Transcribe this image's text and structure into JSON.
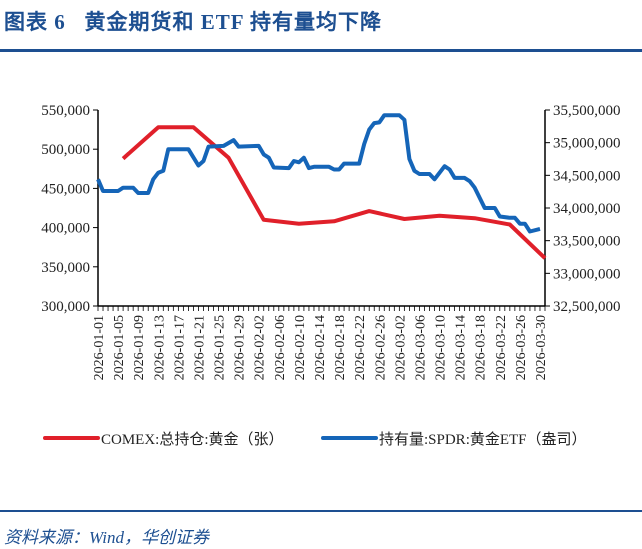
{
  "title": "图表 6   黄金期货和 ETF 持有量均下降",
  "source": "资料来源：Wind，华创证券",
  "chart_data": {
    "type": "line",
    "title": "",
    "xlabel": "",
    "x_range": [
      "2026-01-01",
      "2026-03-31"
    ],
    "x_tick_labels": [
      "2026-01-01",
      "2026-01-05",
      "2026-01-09",
      "2026-01-13",
      "2026-01-17",
      "2026-01-21",
      "2026-01-25",
      "2026-01-29",
      "2026-02-02",
      "2026-02-06",
      "2026-02-10",
      "2026-02-14",
      "2026-02-18",
      "2026-02-22",
      "2026-02-26",
      "2026-03-02",
      "2026-03-06",
      "2026-03-10",
      "2026-03-14",
      "2026-03-18",
      "2026-03-22",
      "2026-03-26",
      "2026-03-30"
    ],
    "y_left": {
      "range": [
        300000,
        550000
      ],
      "ticks": [
        "300,000",
        "350,000",
        "400,000",
        "450,000",
        "500,000",
        "550,000"
      ]
    },
    "y_right": {
      "range": [
        32500000,
        35500000
      ],
      "ticks": [
        "32,500,000",
        "33,000,000",
        "33,500,000",
        "34,000,000",
        "34,500,000",
        "35,000,000",
        "35,500,000"
      ]
    },
    "grid": false,
    "legend_position": "bottom",
    "series": [
      {
        "name": "COMEX:总持仓:黄金（张）",
        "axis": "left",
        "color": "#e0202a",
        "points": [
          [
            "2026-01-06",
            488000
          ],
          [
            "2026-01-13",
            528000
          ],
          [
            "2026-01-20",
            528000
          ],
          [
            "2026-01-27",
            489000
          ],
          [
            "2026-02-03",
            410000
          ],
          [
            "2026-02-10",
            405000
          ],
          [
            "2026-02-17",
            408000
          ],
          [
            "2026-02-24",
            421000
          ],
          [
            "2026-03-03",
            411000
          ],
          [
            "2026-03-10",
            415000
          ],
          [
            "2026-03-17",
            412000
          ],
          [
            "2026-03-24",
            404000
          ],
          [
            "2026-03-31",
            361000
          ]
        ]
      },
      {
        "name": "持有量:SPDR:黄金ETF（盎司）",
        "axis": "right",
        "color": "#1565b8",
        "points": [
          [
            "2026-01-01",
            34440000
          ],
          [
            "2026-01-02",
            34260000
          ],
          [
            "2026-01-05",
            34260000
          ],
          [
            "2026-01-06",
            34310000
          ],
          [
            "2026-01-08",
            34310000
          ],
          [
            "2026-01-09",
            34230000
          ],
          [
            "2026-01-11",
            34230000
          ],
          [
            "2026-01-12",
            34440000
          ],
          [
            "2026-01-13",
            34540000
          ],
          [
            "2026-01-14",
            34570000
          ],
          [
            "2026-01-15",
            34900000
          ],
          [
            "2026-01-19",
            34900000
          ],
          [
            "2026-01-21",
            34650000
          ],
          [
            "2026-01-22",
            34720000
          ],
          [
            "2026-01-23",
            34940000
          ],
          [
            "2026-01-26",
            34950000
          ],
          [
            "2026-01-28",
            35040000
          ],
          [
            "2026-01-29",
            34940000
          ],
          [
            "2026-02-02",
            34950000
          ],
          [
            "2026-02-03",
            34820000
          ],
          [
            "2026-02-04",
            34770000
          ],
          [
            "2026-02-05",
            34620000
          ],
          [
            "2026-02-08",
            34610000
          ],
          [
            "2026-02-09",
            34720000
          ],
          [
            "2026-02-10",
            34700000
          ],
          [
            "2026-02-11",
            34770000
          ],
          [
            "2026-02-12",
            34610000
          ],
          [
            "2026-02-13",
            34630000
          ],
          [
            "2026-02-16",
            34630000
          ],
          [
            "2026-02-17",
            34590000
          ],
          [
            "2026-02-18",
            34590000
          ],
          [
            "2026-02-19",
            34680000
          ],
          [
            "2026-02-22",
            34680000
          ],
          [
            "2026-02-23",
            34980000
          ],
          [
            "2026-02-24",
            35200000
          ],
          [
            "2026-02-25",
            35300000
          ],
          [
            "2026-02-26",
            35310000
          ],
          [
            "2026-02-27",
            35420000
          ],
          [
            "2026-03-02",
            35420000
          ],
          [
            "2026-03-03",
            35350000
          ],
          [
            "2026-03-04",
            34750000
          ],
          [
            "2026-03-05",
            34570000
          ],
          [
            "2026-03-06",
            34520000
          ],
          [
            "2026-03-08",
            34520000
          ],
          [
            "2026-03-09",
            34440000
          ],
          [
            "2026-03-11",
            34640000
          ],
          [
            "2026-03-12",
            34590000
          ],
          [
            "2026-03-13",
            34460000
          ],
          [
            "2026-03-15",
            34460000
          ],
          [
            "2026-03-16",
            34410000
          ],
          [
            "2026-03-17",
            34310000
          ],
          [
            "2026-03-19",
            34000000
          ],
          [
            "2026-03-21",
            34000000
          ],
          [
            "2026-03-22",
            33870000
          ],
          [
            "2026-03-24",
            33850000
          ],
          [
            "2026-03-25",
            33850000
          ],
          [
            "2026-03-26",
            33760000
          ],
          [
            "2026-03-27",
            33760000
          ],
          [
            "2026-03-28",
            33640000
          ],
          [
            "2026-03-30",
            33680000
          ]
        ]
      }
    ]
  }
}
